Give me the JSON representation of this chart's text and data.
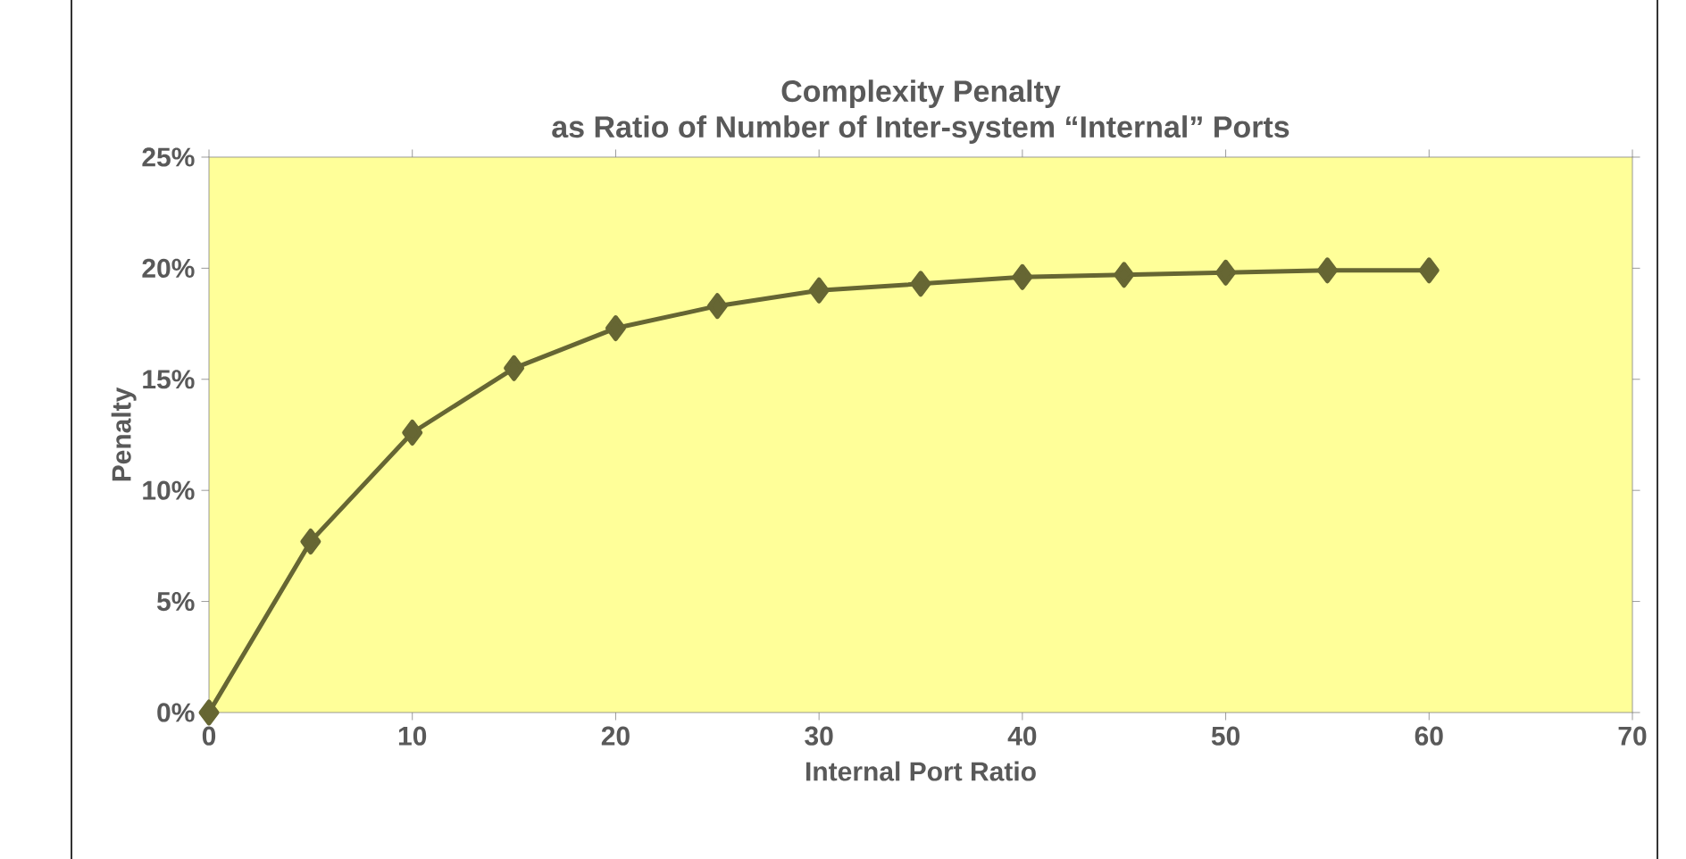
{
  "chart_data": {
    "type": "line",
    "title": "Complexity Penalty\nas Ratio of Number of Inter-system “Internal” Ports",
    "xlabel": "Internal Port Ratio",
    "ylabel": "Penalty",
    "x": [
      0,
      5,
      10,
      15,
      20,
      25,
      30,
      35,
      40,
      45,
      50,
      55,
      60
    ],
    "series": [
      {
        "color": "#666633",
        "values": [
          0,
          7.7,
          12.6,
          15.5,
          17.3,
          18.3,
          19.0,
          19.3,
          19.6,
          19.7,
          19.8,
          19.9,
          19.9
        ]
      }
    ],
    "xlim": [
      0,
      70
    ],
    "xticks": [
      0,
      10,
      20,
      30,
      40,
      50,
      60,
      70
    ],
    "ylim": [
      0,
      25
    ],
    "yticks": [
      {
        "value": 0,
        "label": "0%"
      },
      {
        "value": 5,
        "label": "5%"
      },
      {
        "value": 10,
        "label": "10%"
      },
      {
        "value": 15,
        "label": "15%"
      },
      {
        "value": 20,
        "label": "20%"
      },
      {
        "value": 25,
        "label": "25%"
      }
    ],
    "marker": "diamond",
    "line_style": "solid",
    "grid": false
  }
}
